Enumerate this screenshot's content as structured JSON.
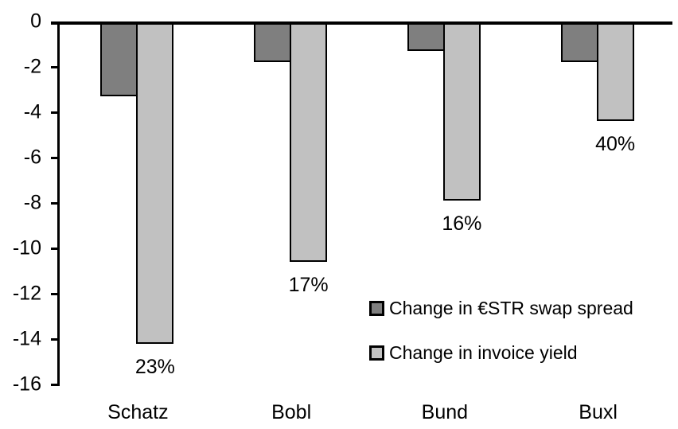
{
  "chart_data": {
    "type": "bar",
    "title": "",
    "xlabel": "",
    "ylabel": "",
    "categories": [
      "Schatz",
      "Bobl",
      "Bund",
      "Buxl"
    ],
    "series": [
      {
        "name": "Change in €STR swap spread",
        "color": "#7f7f7f",
        "values": [
          -3.3,
          -1.8,
          -1.3,
          -1.8
        ]
      },
      {
        "name": "Change in invoice yield",
        "color": "#c1c1c1",
        "values": [
          -14.2,
          -10.6,
          -7.9,
          -4.4
        ]
      }
    ],
    "bar_labels": {
      "series": "Change in invoice yield",
      "values": [
        "23%",
        "17%",
        "16%",
        "40%"
      ]
    },
    "yticks": [
      0,
      -2,
      -4,
      -6,
      -8,
      -10,
      -12,
      -14,
      -16
    ],
    "ylim": [
      -16,
      0
    ],
    "grid": false,
    "legend_position": "inside-center-right",
    "axis_color": "#000000",
    "bar_border_color": "#000000",
    "background_color": "#ffffff"
  }
}
